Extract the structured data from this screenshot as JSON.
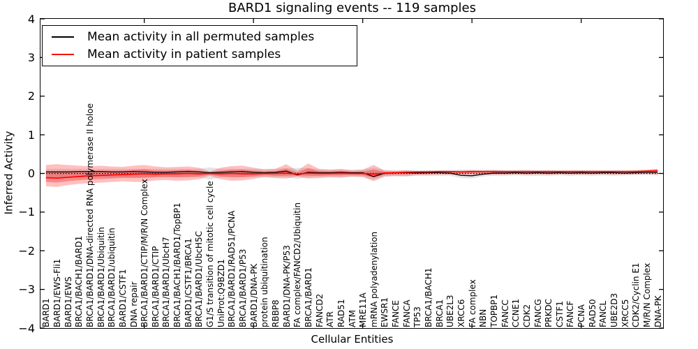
{
  "chart_data": {
    "type": "line",
    "title": "BARD1 signaling events -- 119 samples",
    "xlabel": "Cellular Entities",
    "ylabel": "Inferred Activity",
    "ylim": [
      -4,
      4
    ],
    "y_tick_labels": [
      "4",
      "3",
      "2",
      "1",
      "0",
      "−1",
      "−2",
      "−3",
      "−4"
    ],
    "y_tick_values": [
      4,
      3,
      2,
      1,
      0,
      -1,
      -2,
      -3,
      -4
    ],
    "top_bottom_tick_categories": [
      9,
      19,
      29,
      39,
      49
    ],
    "grid": false,
    "legend_position": "upper left",
    "legend": [
      {
        "label": "Mean activity in all permuted samples",
        "color": "#000000"
      },
      {
        "label": "Mean activity in patient samples",
        "color": "#ff0000"
      }
    ],
    "colors": {
      "permuted_line": "#000000",
      "patient_line": "#ff0000",
      "zero_line": "#000000",
      "patient_band": "rgba(255,45,45,0.30)",
      "patient_band_inner": "rgba(235,25,25,0.32)",
      "permuted_band": "rgba(130,130,130,0.22)"
    },
    "categories": [
      "BARD1",
      "BARD1/EWS-Fli1",
      "BARD1/EWS",
      "BRCA1/BACH1/BARD1",
      "BRCA1/BARD1/DNA-directed RNA polymerase II holoe",
      "BRCA1/BARD1/Ubiquitin",
      "BRCA1/BARD1/ubiquitin",
      "BARD1/CSTF1",
      "DNA repair",
      "BRCA1/BARD1/CTIP/M/R/N Complex",
      "BRCA1/BARD1/CTIP",
      "BRCA1/BARD1/UbcH7",
      "BRCA1/BACH1/BARD1/TopBP1",
      "BARD1/CSTF1/BRCA1",
      "BRCA1/BARD1/UbcH5C",
      "G1/S transition of mitotic cell cycle",
      "UniProt:Q9BZD1",
      "BRCA1/BARD1/RAD51/PCNA",
      "BRCA1/BARD1/P53",
      "BARD1/DNA-PK",
      "protein ubiquitination",
      "RBBP8",
      "BARD1/DNA-PK/P53",
      "FA complex/FANCD2/Ubiquitin",
      "BRCA1/BARD1",
      "FANCD2",
      "ATR",
      "RAD51",
      "ATM",
      "MRE11A",
      "mRNA polyadenylation",
      "EWSR1",
      "FANCE",
      "FANCA",
      "TP53",
      "BRCA1/BACH1",
      "BRCA1",
      "UBE2L3",
      "XRCC6",
      "FA complex",
      "NBN",
      "TOPBP1",
      "FANCC",
      "CCNE1",
      "CDK2",
      "FANCG",
      "PRKDC",
      "CSTF1",
      "FANCF",
      "PCNA",
      "RAD50",
      "FANCL",
      "UBE2D3",
      "XRCC5",
      "CDK2/Cyclin E1",
      "M/R/N Complex",
      "DNA-PK"
    ],
    "series": [
      {
        "name": "Mean activity in all permuted samples",
        "kind": "line",
        "color": "#000000",
        "values": [
          0.04,
          0.04,
          0.04,
          0.05,
          0.05,
          0.05,
          0.04,
          0.04,
          0.05,
          0.04,
          0.03,
          0.03,
          0.04,
          0.05,
          0.04,
          0.02,
          0.03,
          0.04,
          0.05,
          0.03,
          0.02,
          0.03,
          0.06,
          -0.04,
          0.03,
          0.02,
          0.02,
          0.03,
          0.02,
          0.02,
          -0.08,
          0.01,
          0.02,
          0.02,
          0.01,
          0.02,
          0.02,
          0.01,
          -0.05,
          -0.06,
          -0.02,
          0.01,
          0.01,
          0.02,
          0.01,
          0.02,
          0.01,
          0.02,
          0.01,
          0.02,
          0.01,
          0.02,
          0.02,
          0.01,
          0.02,
          0.03,
          0.03
        ]
      },
      {
        "name": "Mean activity in patient samples",
        "kind": "line",
        "color": "#ff0000",
        "values": [
          -0.11,
          -0.12,
          -0.1,
          -0.08,
          -0.06,
          -0.05,
          -0.04,
          -0.03,
          -0.02,
          -0.01,
          -0.02,
          -0.01,
          -0.01,
          0.0,
          -0.01,
          0.0,
          -0.01,
          0.0,
          -0.01,
          -0.01,
          0.0,
          0.0,
          0.01,
          -0.02,
          0.01,
          0.0,
          0.0,
          0.01,
          0.0,
          0.0,
          -0.02,
          0.01,
          0.02,
          0.03,
          0.04,
          0.04,
          0.05,
          0.05,
          0.04,
          0.05,
          0.05,
          0.05,
          0.05,
          0.05,
          0.05,
          0.05,
          0.05,
          0.05,
          0.05,
          0.05,
          0.05,
          0.05,
          0.05,
          0.05,
          0.05,
          0.06,
          0.07
        ]
      },
      {
        "name": "patient activity band",
        "kind": "band",
        "hi": [
          0.22,
          0.24,
          0.22,
          0.2,
          0.19,
          0.2,
          0.18,
          0.17,
          0.2,
          0.22,
          0.18,
          0.16,
          0.17,
          0.18,
          0.15,
          0.05,
          0.15,
          0.19,
          0.2,
          0.15,
          0.1,
          0.12,
          0.24,
          0.07,
          0.26,
          0.12,
          0.1,
          0.12,
          0.08,
          0.1,
          0.22,
          0.08,
          0.06,
          0.08,
          0.06,
          0.07,
          0.07,
          0.07,
          0.07,
          0.08,
          0.07,
          0.08,
          0.07,
          0.07,
          0.07,
          0.07,
          0.07,
          0.07,
          0.07,
          0.07,
          0.07,
          0.07,
          0.07,
          0.07,
          0.08,
          0.09,
          0.12
        ],
        "lo": [
          -0.33,
          -0.35,
          -0.3,
          -0.27,
          -0.25,
          -0.24,
          -0.22,
          -0.2,
          -0.22,
          -0.22,
          -0.18,
          -0.17,
          -0.19,
          -0.18,
          -0.15,
          -0.06,
          -0.15,
          -0.19,
          -0.18,
          -0.14,
          -0.09,
          -0.12,
          -0.13,
          -0.08,
          -0.13,
          -0.12,
          -0.1,
          -0.11,
          -0.08,
          -0.09,
          -0.2,
          -0.08,
          -0.06,
          -0.07,
          -0.04,
          -0.04,
          -0.03,
          -0.03,
          -0.04,
          -0.03,
          -0.03,
          -0.03,
          -0.03,
          -0.02,
          -0.03,
          -0.02,
          -0.03,
          -0.02,
          -0.02,
          -0.03,
          -0.02,
          -0.02,
          -0.03,
          -0.02,
          -0.02,
          -0.02,
          -0.04
        ]
      },
      {
        "name": "permuted activity band",
        "kind": "band",
        "hi": [
          0.12,
          0.12,
          0.12,
          0.12,
          0.12,
          0.12,
          0.12,
          0.12,
          0.12,
          0.12,
          0.12,
          0.12,
          0.12,
          0.12,
          0.12,
          0.16,
          0.12,
          0.12,
          0.12,
          0.12,
          0.12,
          0.12,
          0.14,
          0.14,
          0.14,
          0.1,
          0.1,
          0.1,
          0.1,
          0.1,
          0.15,
          0.09,
          0.09,
          0.09,
          0.08,
          0.08,
          0.08,
          0.08,
          0.1,
          0.1,
          0.09,
          0.1,
          0.08,
          0.09,
          0.1,
          0.08,
          0.09,
          0.08,
          0.08,
          0.09,
          0.08,
          0.08,
          0.09,
          0.08,
          0.09,
          0.1,
          0.12
        ],
        "lo": [
          -0.1,
          -0.1,
          -0.1,
          -0.1,
          -0.1,
          -0.1,
          -0.1,
          -0.1,
          -0.1,
          -0.1,
          -0.1,
          -0.1,
          -0.1,
          -0.1,
          -0.1,
          -0.16,
          -0.1,
          -0.1,
          -0.1,
          -0.1,
          -0.1,
          -0.1,
          -0.1,
          -0.14,
          -0.1,
          -0.09,
          -0.09,
          -0.09,
          -0.09,
          -0.09,
          -0.16,
          -0.08,
          -0.08,
          -0.08,
          -0.06,
          -0.06,
          -0.06,
          -0.06,
          -0.12,
          -0.13,
          -0.08,
          -0.06,
          -0.06,
          -0.05,
          -0.06,
          -0.06,
          -0.06,
          -0.05,
          -0.06,
          -0.05,
          -0.06,
          -0.05,
          -0.06,
          -0.05,
          -0.04,
          -0.03,
          -0.02
        ]
      }
    ]
  }
}
